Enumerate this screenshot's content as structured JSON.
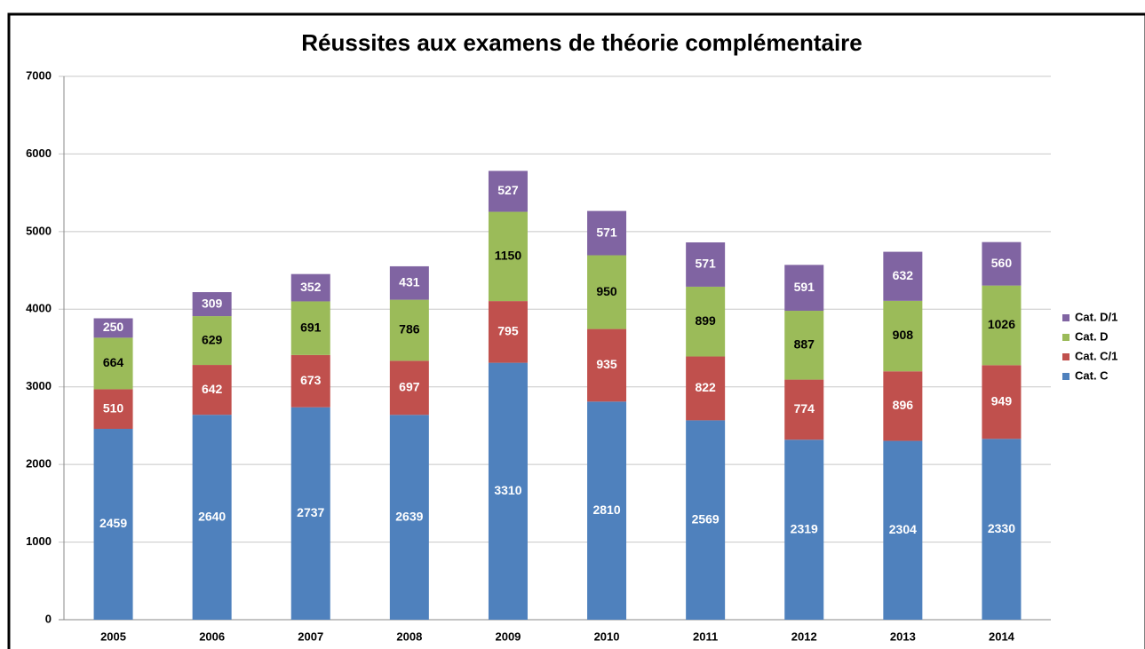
{
  "chart_data": {
    "type": "stacked_bar",
    "title": "Réussites aux examens de théorie complémentaire",
    "categories": [
      "2005",
      "2006",
      "2007",
      "2008",
      "2009",
      "2010",
      "2011",
      "2012",
      "2013",
      "2014"
    ],
    "series": [
      {
        "name": "Cat. C",
        "color": "#4f81bd",
        "label_color": "#ffffff",
        "values": [
          2459,
          2640,
          2737,
          2639,
          3310,
          2810,
          2569,
          2319,
          2304,
          2330
        ]
      },
      {
        "name": "Cat. C/1",
        "color": "#c0504d",
        "label_color": "#ffffff",
        "values": [
          510,
          642,
          673,
          697,
          795,
          935,
          822,
          774,
          896,
          949
        ]
      },
      {
        "name": "Cat. D",
        "color": "#9bbb59",
        "label_color": "#000000",
        "values": [
          664,
          629,
          691,
          786,
          1150,
          950,
          899,
          887,
          908,
          1026
        ]
      },
      {
        "name": "Cat. D/1",
        "color": "#8064a2",
        "label_color": "#ffffff",
        "values": [
          250,
          309,
          352,
          431,
          527,
          571,
          571,
          591,
          632,
          560
        ]
      }
    ],
    "ylim": [
      0,
      7000
    ],
    "yticks": [
      0,
      1000,
      2000,
      3000,
      4000,
      5000,
      6000,
      7000
    ],
    "grid": true,
    "legend": "right"
  }
}
